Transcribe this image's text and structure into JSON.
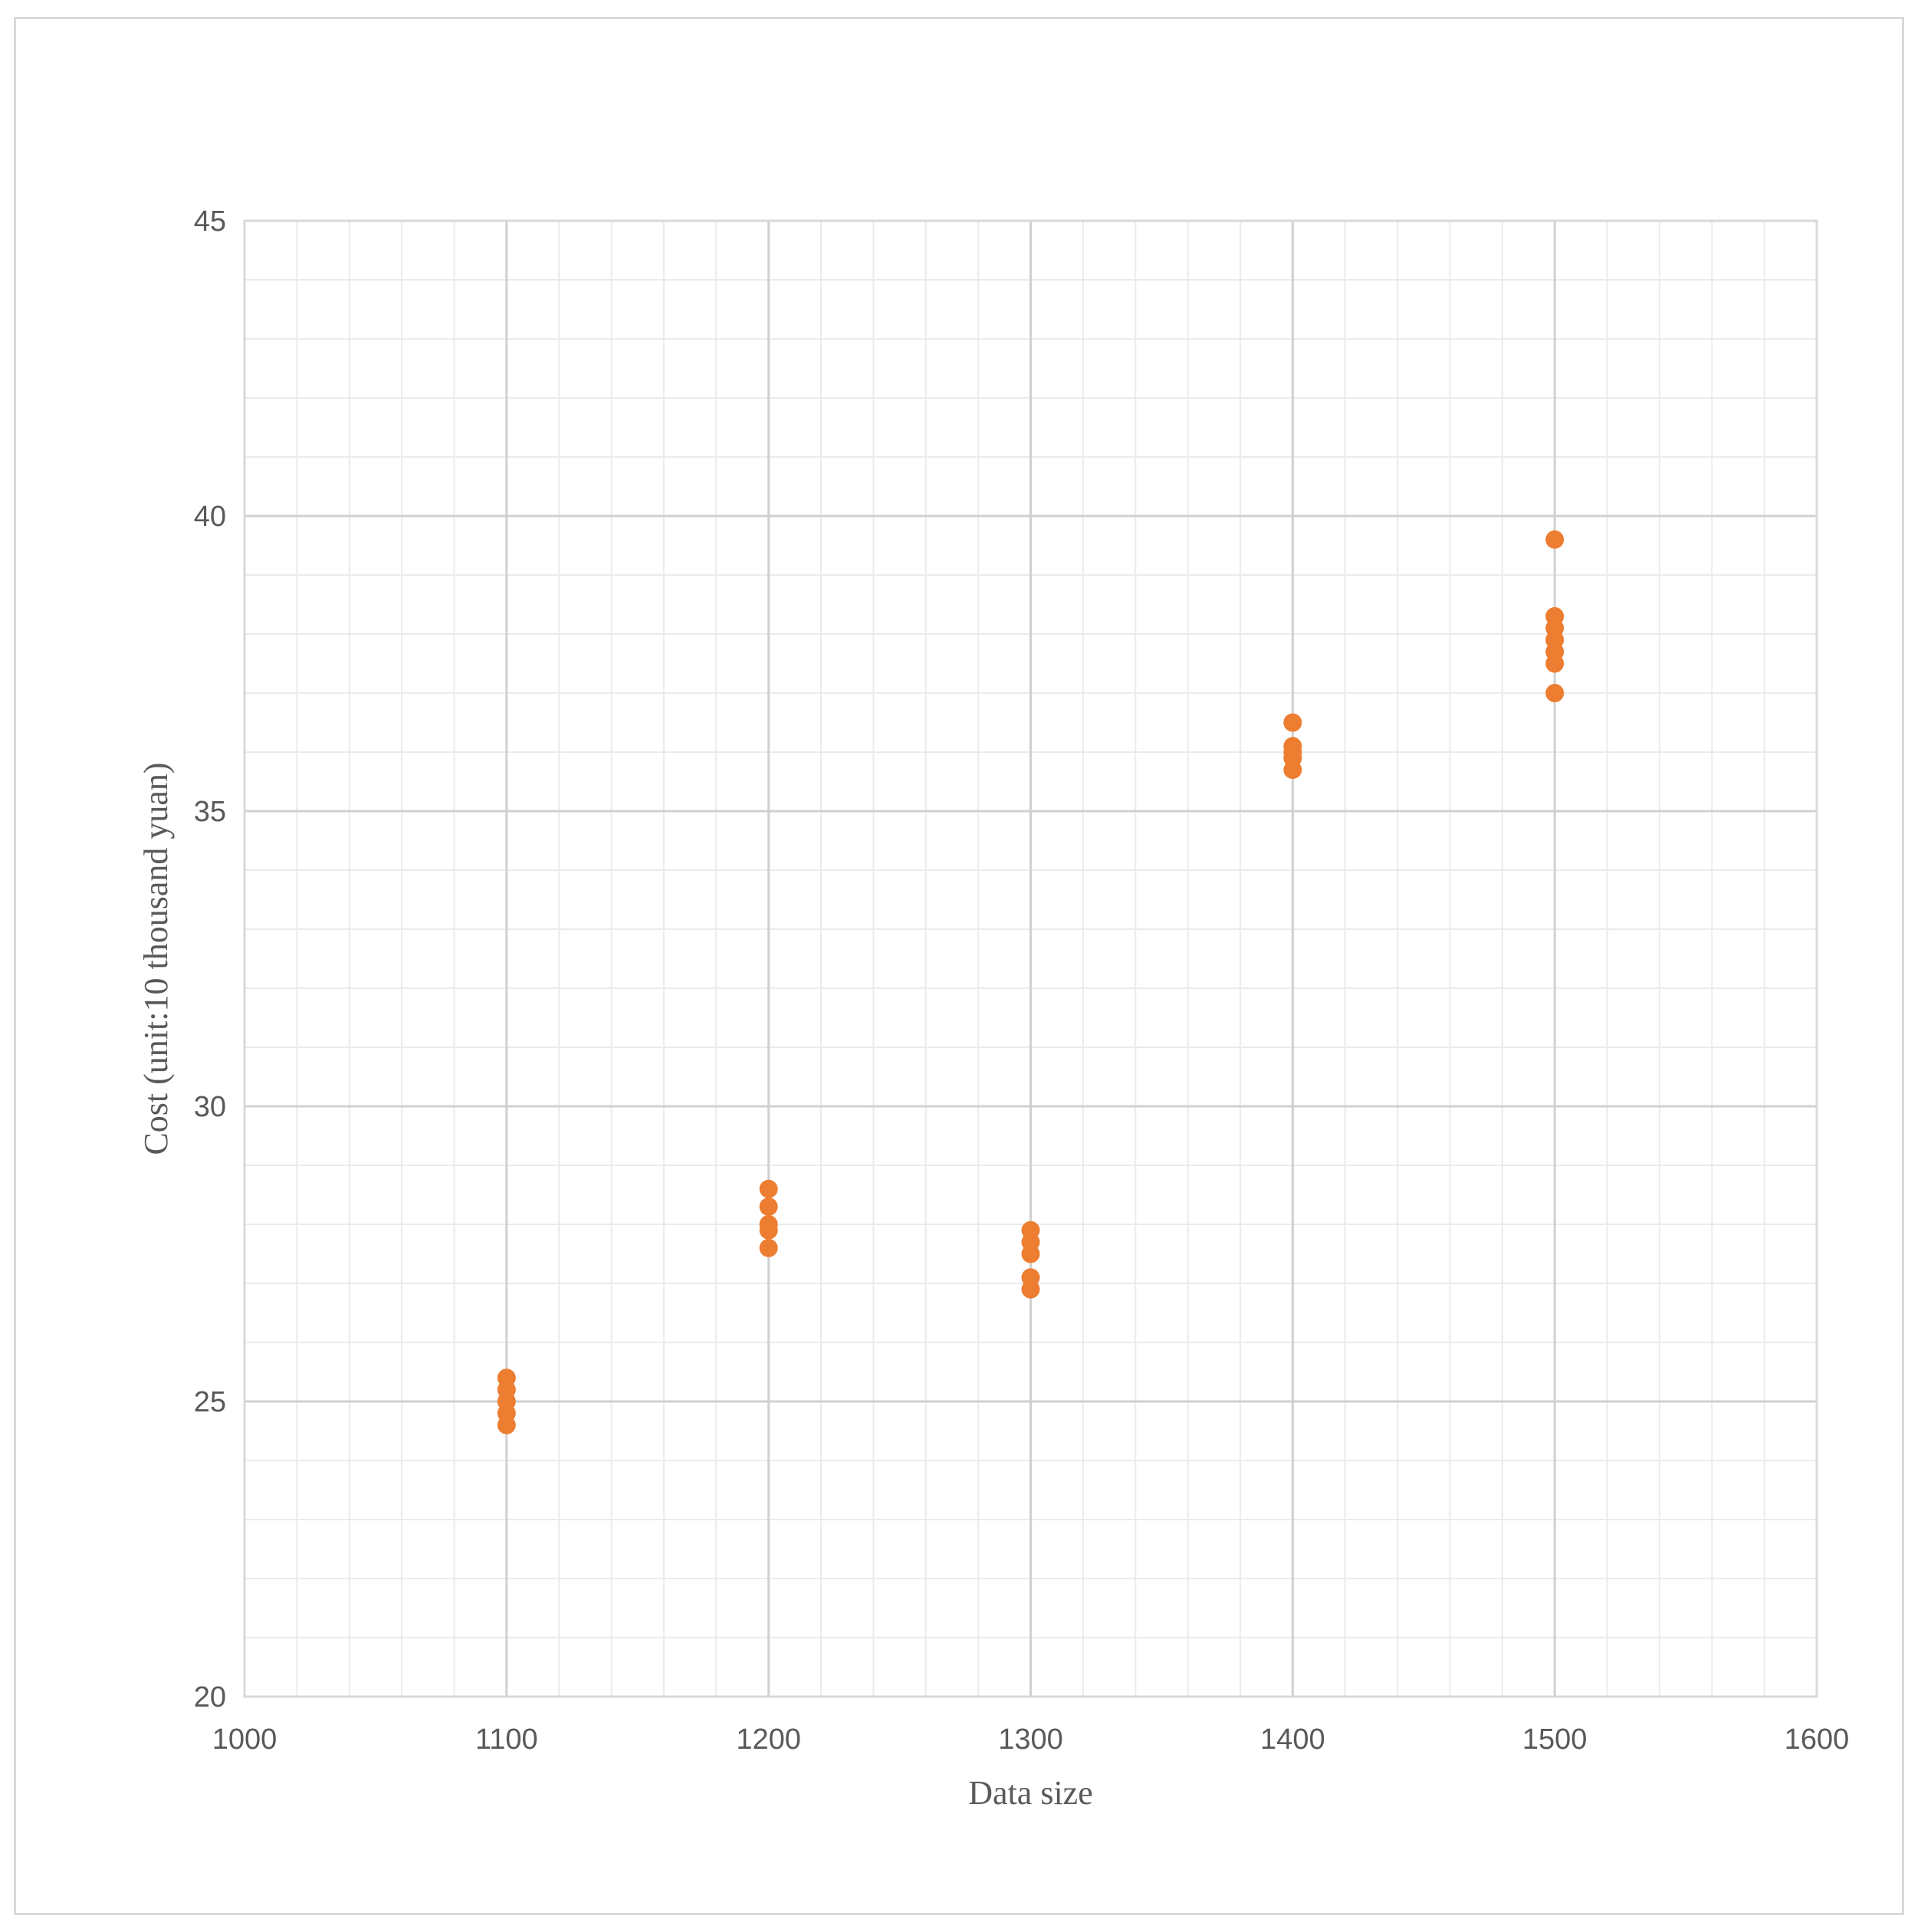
{
  "chart_data": {
    "type": "scatter",
    "title": "",
    "xlabel": "Data size",
    "ylabel": "Cost (unit:10 thousand yuan)",
    "xlim": [
      1000,
      1600
    ],
    "ylim": [
      20,
      45
    ],
    "x_major_step": 100,
    "x_minor_step": 20,
    "y_major_step": 5,
    "y_minor_step": 1,
    "x_ticks": [
      "1000",
      "1100",
      "1200",
      "1300",
      "1400",
      "1500",
      "1600"
    ],
    "y_ticks": [
      "20",
      "25",
      "30",
      "35",
      "40",
      "45"
    ],
    "grid": true,
    "legend": "none",
    "marker_color": "#ED7D31",
    "series": [
      {
        "points": [
          {
            "x": 1100,
            "y": 24.6
          },
          {
            "x": 1100,
            "y": 24.8
          },
          {
            "x": 1100,
            "y": 25.0
          },
          {
            "x": 1100,
            "y": 25.2
          },
          {
            "x": 1100,
            "y": 25.4
          },
          {
            "x": 1200,
            "y": 27.6
          },
          {
            "x": 1200,
            "y": 27.9
          },
          {
            "x": 1200,
            "y": 28.0
          },
          {
            "x": 1200,
            "y": 28.3
          },
          {
            "x": 1200,
            "y": 28.6
          },
          {
            "x": 1300,
            "y": 26.9
          },
          {
            "x": 1300,
            "y": 27.1
          },
          {
            "x": 1300,
            "y": 27.5
          },
          {
            "x": 1300,
            "y": 27.7
          },
          {
            "x": 1300,
            "y": 27.9
          },
          {
            "x": 1400,
            "y": 35.7
          },
          {
            "x": 1400,
            "y": 35.9
          },
          {
            "x": 1400,
            "y": 36.0
          },
          {
            "x": 1400,
            "y": 36.1
          },
          {
            "x": 1400,
            "y": 36.5
          },
          {
            "x": 1500,
            "y": 37.0
          },
          {
            "x": 1500,
            "y": 37.5
          },
          {
            "x": 1500,
            "y": 37.7
          },
          {
            "x": 1500,
            "y": 37.9
          },
          {
            "x": 1500,
            "y": 38.1
          },
          {
            "x": 1500,
            "y": 38.3
          },
          {
            "x": 1500,
            "y": 39.6
          }
        ]
      }
    ]
  }
}
